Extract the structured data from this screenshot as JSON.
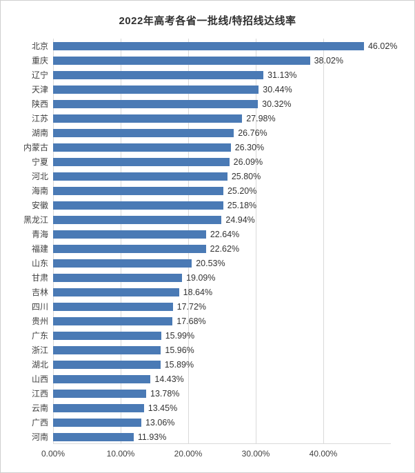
{
  "chart_data": {
    "type": "bar",
    "orientation": "horizontal",
    "title": "2022年高考各省一批线/特招线达线率",
    "categories": [
      "北京",
      "重庆",
      "辽宁",
      "天津",
      "陕西",
      "江苏",
      "湖南",
      "内蒙古",
      "宁夏",
      "河北",
      "海南",
      "安徽",
      "黑龙江",
      "青海",
      "福建",
      "山东",
      "甘肃",
      "吉林",
      "四川",
      "贵州",
      "广东",
      "浙江",
      "湖北",
      "山西",
      "江西",
      "云南",
      "广西",
      "河南"
    ],
    "values": [
      46.02,
      38.02,
      31.13,
      30.44,
      30.32,
      27.98,
      26.76,
      26.3,
      26.09,
      25.8,
      25.2,
      25.18,
      24.94,
      22.64,
      22.62,
      20.53,
      19.09,
      18.64,
      17.72,
      17.68,
      15.99,
      15.96,
      15.89,
      14.43,
      13.78,
      13.45,
      13.06,
      11.93
    ],
    "value_labels": [
      "46.02%",
      "38.02%",
      "31.13%",
      "30.44%",
      "30.32%",
      "27.98%",
      "26.76%",
      "26.30%",
      "26.09%",
      "25.80%",
      "25.20%",
      "25.18%",
      "24.94%",
      "22.64%",
      "22.62%",
      "20.53%",
      "19.09%",
      "18.64%",
      "17.72%",
      "17.68%",
      "15.99%",
      "15.96%",
      "15.89%",
      "14.43%",
      "13.78%",
      "13.45%",
      "13.06%",
      "11.93%"
    ],
    "x_ticks": [
      "0.00%",
      "10.00%",
      "20.00%",
      "30.00%",
      "40.00%"
    ],
    "x_tick_values": [
      0,
      10,
      20,
      30,
      40
    ],
    "xlim": [
      0,
      50
    ],
    "bar_color": "#4a7ab5",
    "grid_color": "#d9d9d9",
    "grid": true,
    "legend": false
  }
}
